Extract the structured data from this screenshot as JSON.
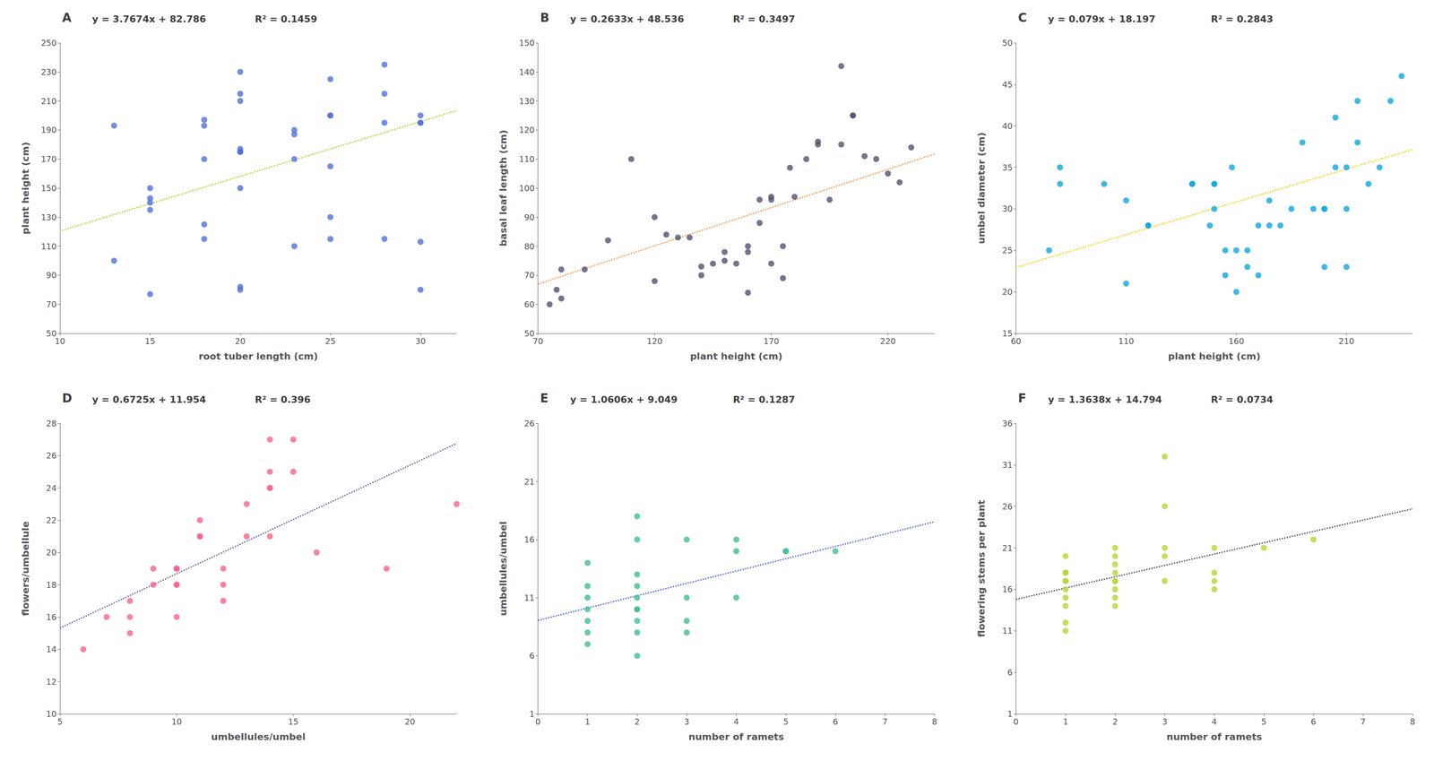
{
  "chart_data": [
    {
      "type": "scatter",
      "title": "A",
      "xlabel": "root tuber length (cm)",
      "ylabel": "plant height (cm)",
      "annotations": [
        "y = 3.7674x + 82.786",
        "R² = 0.1459"
      ],
      "xlim": [
        10,
        32
      ],
      "ylim": [
        50,
        250
      ],
      "xticks": [
        10,
        15,
        20,
        25,
        30
      ],
      "yticks": [
        50,
        70,
        90,
        110,
        130,
        150,
        170,
        190,
        210,
        230,
        250
      ],
      "grid": false,
      "series": [
        {
          "type": "scatter",
          "x": [
            13,
            13,
            15,
            15,
            15,
            15,
            15,
            18,
            18,
            18,
            18,
            18,
            20,
            20,
            20,
            20,
            20,
            20,
            20,
            20,
            20,
            20,
            23,
            23,
            23,
            23,
            25,
            25,
            25,
            25,
            25,
            25,
            28,
            28,
            28,
            28,
            30,
            30,
            30,
            30,
            30
          ],
          "values": [
            193,
            100,
            150,
            143,
            140,
            135,
            77,
            197,
            193,
            170,
            125,
            115,
            230,
            215,
            210,
            177,
            175,
            175,
            175,
            150,
            82,
            80,
            190,
            187,
            170,
            110,
            225,
            200,
            200,
            165,
            130,
            115,
            235,
            215,
            195,
            115,
            200,
            195,
            195,
            113,
            80
          ]
        },
        {
          "type": "line",
          "line_style": "dotted",
          "x": [
            10,
            32
          ],
          "values": [
            120.46,
            203.3428
          ]
        }
      ]
    },
    {
      "type": "scatter",
      "title": "B",
      "xlabel": "plant height (cm)",
      "ylabel": "basal leaf length (cm)",
      "annotations": [
        "y = 0.2633x + 48.536",
        "R² = 0.3497"
      ],
      "xlim": [
        70,
        240
      ],
      "ylim": [
        50,
        150
      ],
      "xticks": [
        70,
        120,
        170,
        220
      ],
      "yticks": [
        50,
        60,
        70,
        80,
        90,
        100,
        110,
        120,
        130,
        140,
        150
      ],
      "grid": false,
      "series": [
        {
          "type": "scatter",
          "x": [
            75,
            78,
            80,
            80,
            90,
            100,
            110,
            120,
            120,
            125,
            130,
            135,
            140,
            140,
            145,
            150,
            150,
            155,
            160,
            160,
            160,
            165,
            165,
            170,
            170,
            170,
            175,
            175,
            178,
            180,
            185,
            190,
            190,
            195,
            200,
            200,
            205,
            205,
            210,
            215,
            220,
            225,
            230
          ],
          "values": [
            60,
            65,
            62,
            72,
            72,
            82,
            110,
            90,
            68,
            84,
            83,
            83,
            70,
            73,
            74,
            78,
            75,
            74,
            80,
            78,
            64,
            96,
            88,
            97,
            96,
            74,
            80,
            69,
            107,
            97,
            110,
            116,
            115,
            96,
            142,
            115,
            125,
            125,
            111,
            110,
            105,
            102,
            114
          ]
        },
        {
          "type": "line",
          "line_style": "dotted",
          "x": [
            70,
            240
          ],
          "values": [
            66.967,
            111.728
          ]
        }
      ]
    },
    {
      "type": "scatter",
      "title": "C",
      "xlabel": "plant height (cm)",
      "ylabel": "umbel diameter (cm)",
      "annotations": [
        "y = 0.079x + 18.197",
        "R² = 0.2843"
      ],
      "xlim": [
        60,
        240
      ],
      "ylim": [
        15,
        50
      ],
      "xticks": [
        60,
        110,
        160,
        210
      ],
      "yticks": [
        15,
        20,
        25,
        30,
        35,
        40,
        45,
        50
      ],
      "grid": false,
      "series": [
        {
          "type": "scatter",
          "x": [
            75,
            80,
            80,
            100,
            110,
            110,
            120,
            120,
            140,
            140,
            148,
            150,
            150,
            150,
            155,
            155,
            158,
            160,
            160,
            165,
            165,
            170,
            170,
            175,
            175,
            180,
            185,
            190,
            195,
            200,
            200,
            200,
            205,
            205,
            210,
            210,
            210,
            215,
            215,
            220,
            225,
            230,
            235
          ],
          "values": [
            25,
            35,
            33,
            33,
            21,
            31,
            28,
            28,
            33,
            33,
            28,
            30,
            33,
            33,
            25,
            22,
            35,
            20,
            25,
            25,
            23,
            22,
            28,
            31,
            28,
            28,
            30,
            38,
            30,
            30,
            30,
            23,
            41,
            35,
            35,
            30,
            23,
            43,
            38,
            33,
            35,
            43,
            46
          ]
        },
        {
          "type": "line",
          "line_style": "dotted",
          "x": [
            60,
            240
          ],
          "values": [
            22.937,
            37.157
          ]
        }
      ]
    },
    {
      "type": "scatter",
      "title": "D",
      "xlabel": "umbellules/umbel",
      "ylabel": "flowers/umbellule",
      "annotations": [
        "y = 0.6725x + 11.954",
        "R² = 0.396"
      ],
      "xlim": [
        5,
        22
      ],
      "ylim": [
        10,
        28
      ],
      "xticks": [
        5,
        10,
        15,
        20
      ],
      "yticks": [
        10,
        12,
        14,
        16,
        18,
        20,
        22,
        24,
        26,
        28
      ],
      "grid": false,
      "series": [
        {
          "type": "scatter",
          "x": [
            6,
            7,
            8,
            8,
            8,
            9,
            9,
            10,
            10,
            10,
            10,
            10,
            10,
            11,
            11,
            11,
            12,
            12,
            12,
            13,
            13,
            14,
            14,
            14,
            14,
            14,
            15,
            15,
            16,
            19,
            22
          ],
          "values": [
            14,
            16,
            15,
            16,
            17,
            19,
            18,
            16,
            19,
            19,
            19,
            18,
            18,
            21,
            22,
            21,
            18,
            17,
            19,
            21,
            23,
            21,
            24,
            24,
            25,
            27,
            25,
            27,
            20,
            19,
            23
          ]
        },
        {
          "type": "line",
          "line_style": "dotted",
          "x": [
            5,
            22
          ],
          "values": [
            15.3165,
            26.749
          ]
        }
      ]
    },
    {
      "type": "scatter",
      "title": "E",
      "xlabel": "number of ramets",
      "ylabel": "umbellules/umbel",
      "annotations": [
        "y = 1.0606x + 9.049",
        "R² = 0.1287"
      ],
      "xlim": [
        0,
        8
      ],
      "ylim": [
        1,
        26
      ],
      "xticks": [
        0,
        1,
        2,
        3,
        4,
        5,
        6,
        7,
        8
      ],
      "yticks": [
        1,
        6,
        11,
        16,
        21,
        26
      ],
      "grid": false,
      "series": [
        {
          "type": "scatter",
          "x": [
            1,
            1,
            1,
            1,
            1,
            1,
            1,
            2,
            2,
            2,
            2,
            2,
            2,
            2,
            2,
            2,
            2,
            3,
            3,
            3,
            3,
            4,
            4,
            4,
            5,
            5,
            6
          ],
          "values": [
            7,
            8,
            9,
            10,
            11,
            12,
            14,
            6,
            8,
            9,
            10,
            10,
            11,
            12,
            13,
            16,
            18,
            8,
            9,
            11,
            16,
            11,
            15,
            16,
            15,
            15,
            15
          ]
        },
        {
          "type": "line",
          "line_style": "dotted",
          "x": [
            0,
            8
          ],
          "values": [
            9.049,
            17.5338
          ]
        }
      ]
    },
    {
      "type": "scatter",
      "title": "F",
      "xlabel": "number of ramets",
      "ylabel": "flowering stems per plant",
      "annotations": [
        "y = 1.3638x + 14.794",
        "R² = 0.0734"
      ],
      "xlim": [
        0,
        8
      ],
      "ylim": [
        1,
        36
      ],
      "xticks": [
        0,
        1,
        2,
        3,
        4,
        5,
        6,
        7,
        8
      ],
      "yticks": [
        1,
        6,
        11,
        16,
        21,
        26,
        31,
        36
      ],
      "grid": false,
      "series": [
        {
          "type": "scatter",
          "x": [
            1,
            1,
            1,
            1,
            1,
            1,
            1,
            1,
            1,
            1,
            2,
            2,
            2,
            2,
            2,
            2,
            2,
            2,
            2,
            3,
            3,
            3,
            3,
            3,
            4,
            4,
            4,
            4,
            5,
            6
          ],
          "values": [
            11,
            12,
            14,
            15,
            16,
            17,
            17,
            18,
            18,
            20,
            14,
            15,
            16,
            17,
            17,
            18,
            19,
            20,
            21,
            17,
            20,
            21,
            26,
            32,
            16,
            17,
            18,
            21,
            21,
            22
          ]
        },
        {
          "type": "line",
          "line_style": "dotted",
          "x": [
            0,
            8
          ],
          "values": [
            14.794,
            25.7044
          ]
        }
      ]
    }
  ]
}
